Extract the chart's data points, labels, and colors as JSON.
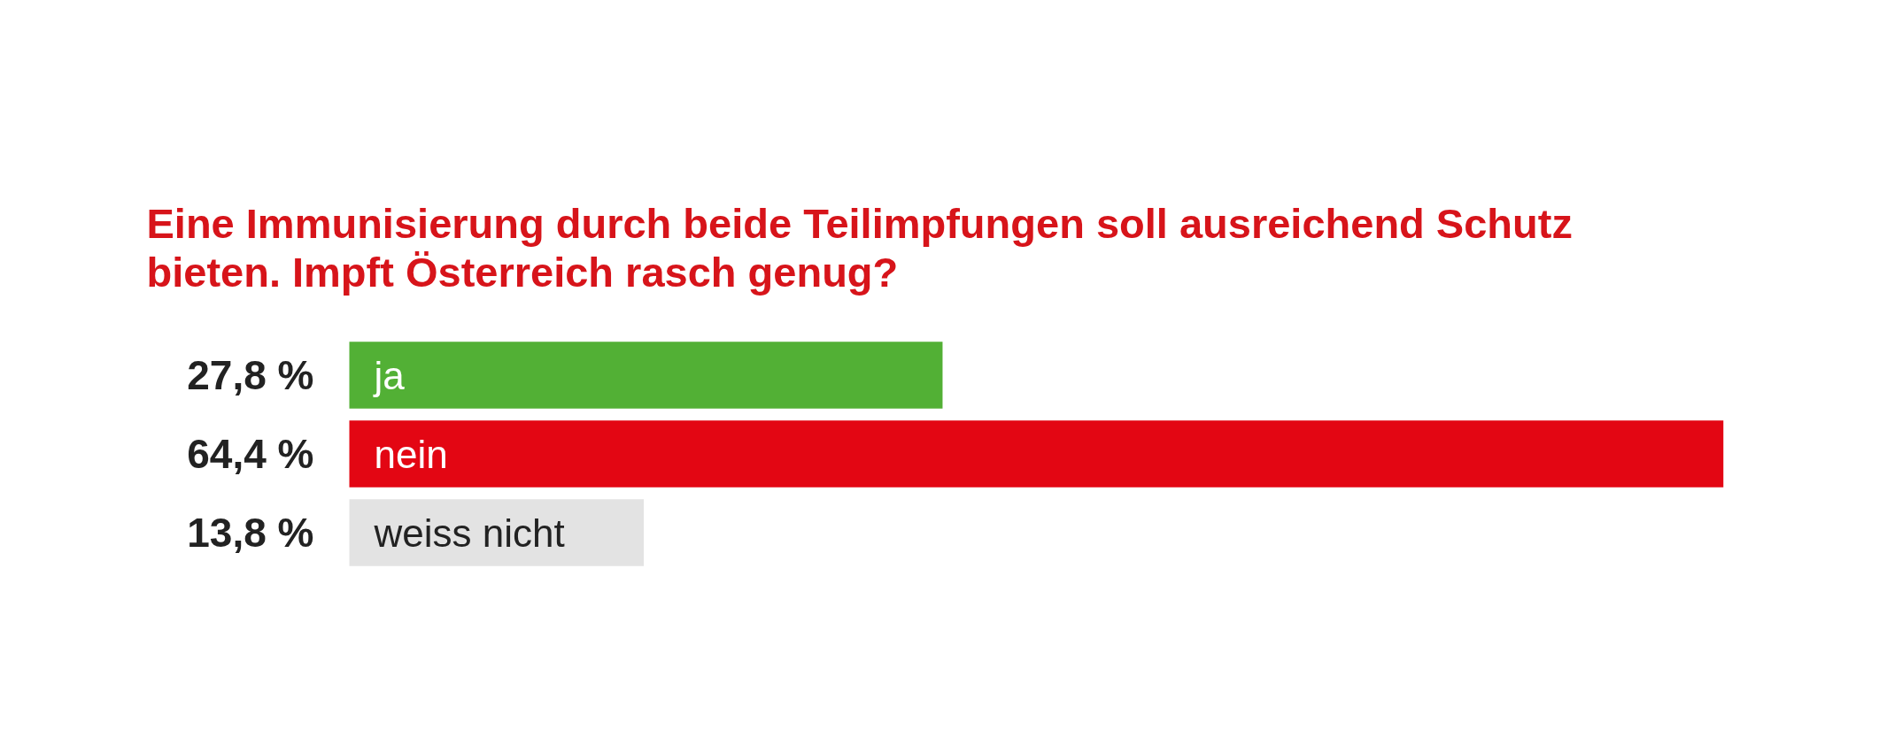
{
  "chart_data": {
    "type": "bar",
    "orientation": "horizontal",
    "title": "Eine Immunisierung durch beide Teilimpfungen soll ausreichend Schutz bieten. Impft Österreich rasch genug?",
    "categories": [
      "ja",
      "nein",
      "weiss nicht"
    ],
    "values": [
      27.8,
      64.4,
      13.8
    ],
    "colors": [
      "#52b035",
      "#e30613",
      "#e3e3e3"
    ],
    "value_labels": [
      "27,8 %",
      "64,4 %",
      "13,8 %"
    ]
  }
}
